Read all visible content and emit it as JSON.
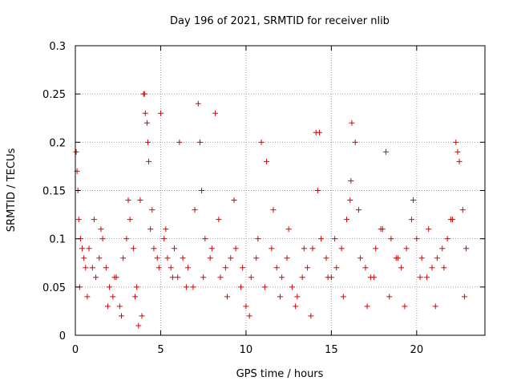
{
  "chart_data": {
    "type": "scatter",
    "title": "Day 196 of 2021, SRMTID for receiver nlib",
    "xlabel": "GPS time / hours",
    "ylabel": "SRMTID / TECUs",
    "xlim": [
      0,
      24
    ],
    "ylim": [
      0,
      0.3
    ],
    "x_ticks": [
      0,
      5,
      10,
      15,
      20
    ],
    "x_tick_labels": [
      "0",
      "5",
      "10",
      "15",
      "20"
    ],
    "y_ticks": [
      0,
      0.05,
      0.1,
      0.15,
      0.2,
      0.25,
      0.3
    ],
    "y_tick_labels": [
      "0",
      "0.05",
      "0.1",
      "0.15",
      "0.2",
      "0.25",
      "0.3"
    ],
    "grid": true,
    "marker": "plus",
    "marker_color": "#e00000",
    "series": [
      {
        "name": "SRMTID",
        "x": [
          0.05,
          0.1,
          0.15,
          0.2,
          0.3,
          0.4,
          0.5,
          0.6,
          0.8,
          1.0,
          1.2,
          1.4,
          1.6,
          1.8,
          2.0,
          2.2,
          2.4,
          2.6,
          2.8,
          3.0,
          3.2,
          3.4,
          3.6,
          3.8,
          3.9,
          4.0,
          4.1,
          4.2,
          4.3,
          4.4,
          4.6,
          4.8,
          5.0,
          5.2,
          5.4,
          5.6,
          5.8,
          6.0,
          6.3,
          6.6,
          6.9,
          7.2,
          7.3,
          7.4,
          7.6,
          7.9,
          8.2,
          8.5,
          8.8,
          9.1,
          9.4,
          9.7,
          10.0,
          10.3,
          10.6,
          10.9,
          11.2,
          11.5,
          11.8,
          12.1,
          12.4,
          12.7,
          13.0,
          13.3,
          13.6,
          13.9,
          14.1,
          14.2,
          14.4,
          14.7,
          15.0,
          15.3,
          15.6,
          15.9,
          16.1,
          16.2,
          16.4,
          16.7,
          17.0,
          17.3,
          17.6,
          17.9,
          18.2,
          18.5,
          18.8,
          19.1,
          19.4,
          19.7,
          20.0,
          20.3,
          20.6,
          20.9,
          21.2,
          21.5,
          21.8,
          22.1,
          22.3,
          22.5,
          22.7,
          22.9,
          0.25,
          0.7,
          1.1,
          1.5,
          1.9,
          2.3,
          2.7,
          3.1,
          3.5,
          3.7,
          4.05,
          4.25,
          4.5,
          4.9,
          5.3,
          5.7,
          6.1,
          6.5,
          7.0,
          7.5,
          8.0,
          8.4,
          8.9,
          9.3,
          9.8,
          10.2,
          10.7,
          11.1,
          11.6,
          12.0,
          12.5,
          12.9,
          13.4,
          13.8,
          14.3,
          14.8,
          15.2,
          15.7,
          16.15,
          16.6,
          17.1,
          17.5,
          18.0,
          18.4,
          18.9,
          19.3,
          19.8,
          20.2,
          20.7,
          21.1,
          21.6,
          22.0,
          22.4,
          22.8
        ],
        "y": [
          0.19,
          0.17,
          0.15,
          0.12,
          0.1,
          0.09,
          0.08,
          0.07,
          0.09,
          0.07,
          0.06,
          0.08,
          0.1,
          0.07,
          0.05,
          0.04,
          0.06,
          0.03,
          0.08,
          0.1,
          0.12,
          0.09,
          0.05,
          0.14,
          0.02,
          0.25,
          0.23,
          0.22,
          0.18,
          0.11,
          0.09,
          0.08,
          0.23,
          0.1,
          0.08,
          0.07,
          0.09,
          0.06,
          0.08,
          0.07,
          0.05,
          0.24,
          0.2,
          0.15,
          0.1,
          0.08,
          0.23,
          0.06,
          0.07,
          0.08,
          0.09,
          0.05,
          0.03,
          0.06,
          0.08,
          0.2,
          0.18,
          0.09,
          0.07,
          0.06,
          0.08,
          0.05,
          0.04,
          0.06,
          0.07,
          0.09,
          0.21,
          0.15,
          0.1,
          0.08,
          0.06,
          0.07,
          0.09,
          0.12,
          0.14,
          0.22,
          0.2,
          0.08,
          0.07,
          0.06,
          0.09,
          0.11,
          0.19,
          0.1,
          0.08,
          0.07,
          0.09,
          0.12,
          0.1,
          0.08,
          0.06,
          0.07,
          0.08,
          0.09,
          0.1,
          0.12,
          0.2,
          0.18,
          0.13,
          0.09,
          0.05,
          0.04,
          0.12,
          0.11,
          0.03,
          0.06,
          0.02,
          0.14,
          0.04,
          0.01,
          0.25,
          0.2,
          0.13,
          0.07,
          0.11,
          0.06,
          0.2,
          0.05,
          0.13,
          0.06,
          0.09,
          0.12,
          0.04,
          0.14,
          0.07,
          0.02,
          0.1,
          0.05,
          0.13,
          0.04,
          0.11,
          0.03,
          0.09,
          0.02,
          0.21,
          0.06,
          0.1,
          0.04,
          0.16,
          0.13,
          0.03,
          0.06,
          0.11,
          0.04,
          0.08,
          0.03,
          0.14,
          0.06,
          0.11,
          0.03,
          0.07,
          0.12,
          0.19,
          0.04
        ]
      }
    ]
  }
}
